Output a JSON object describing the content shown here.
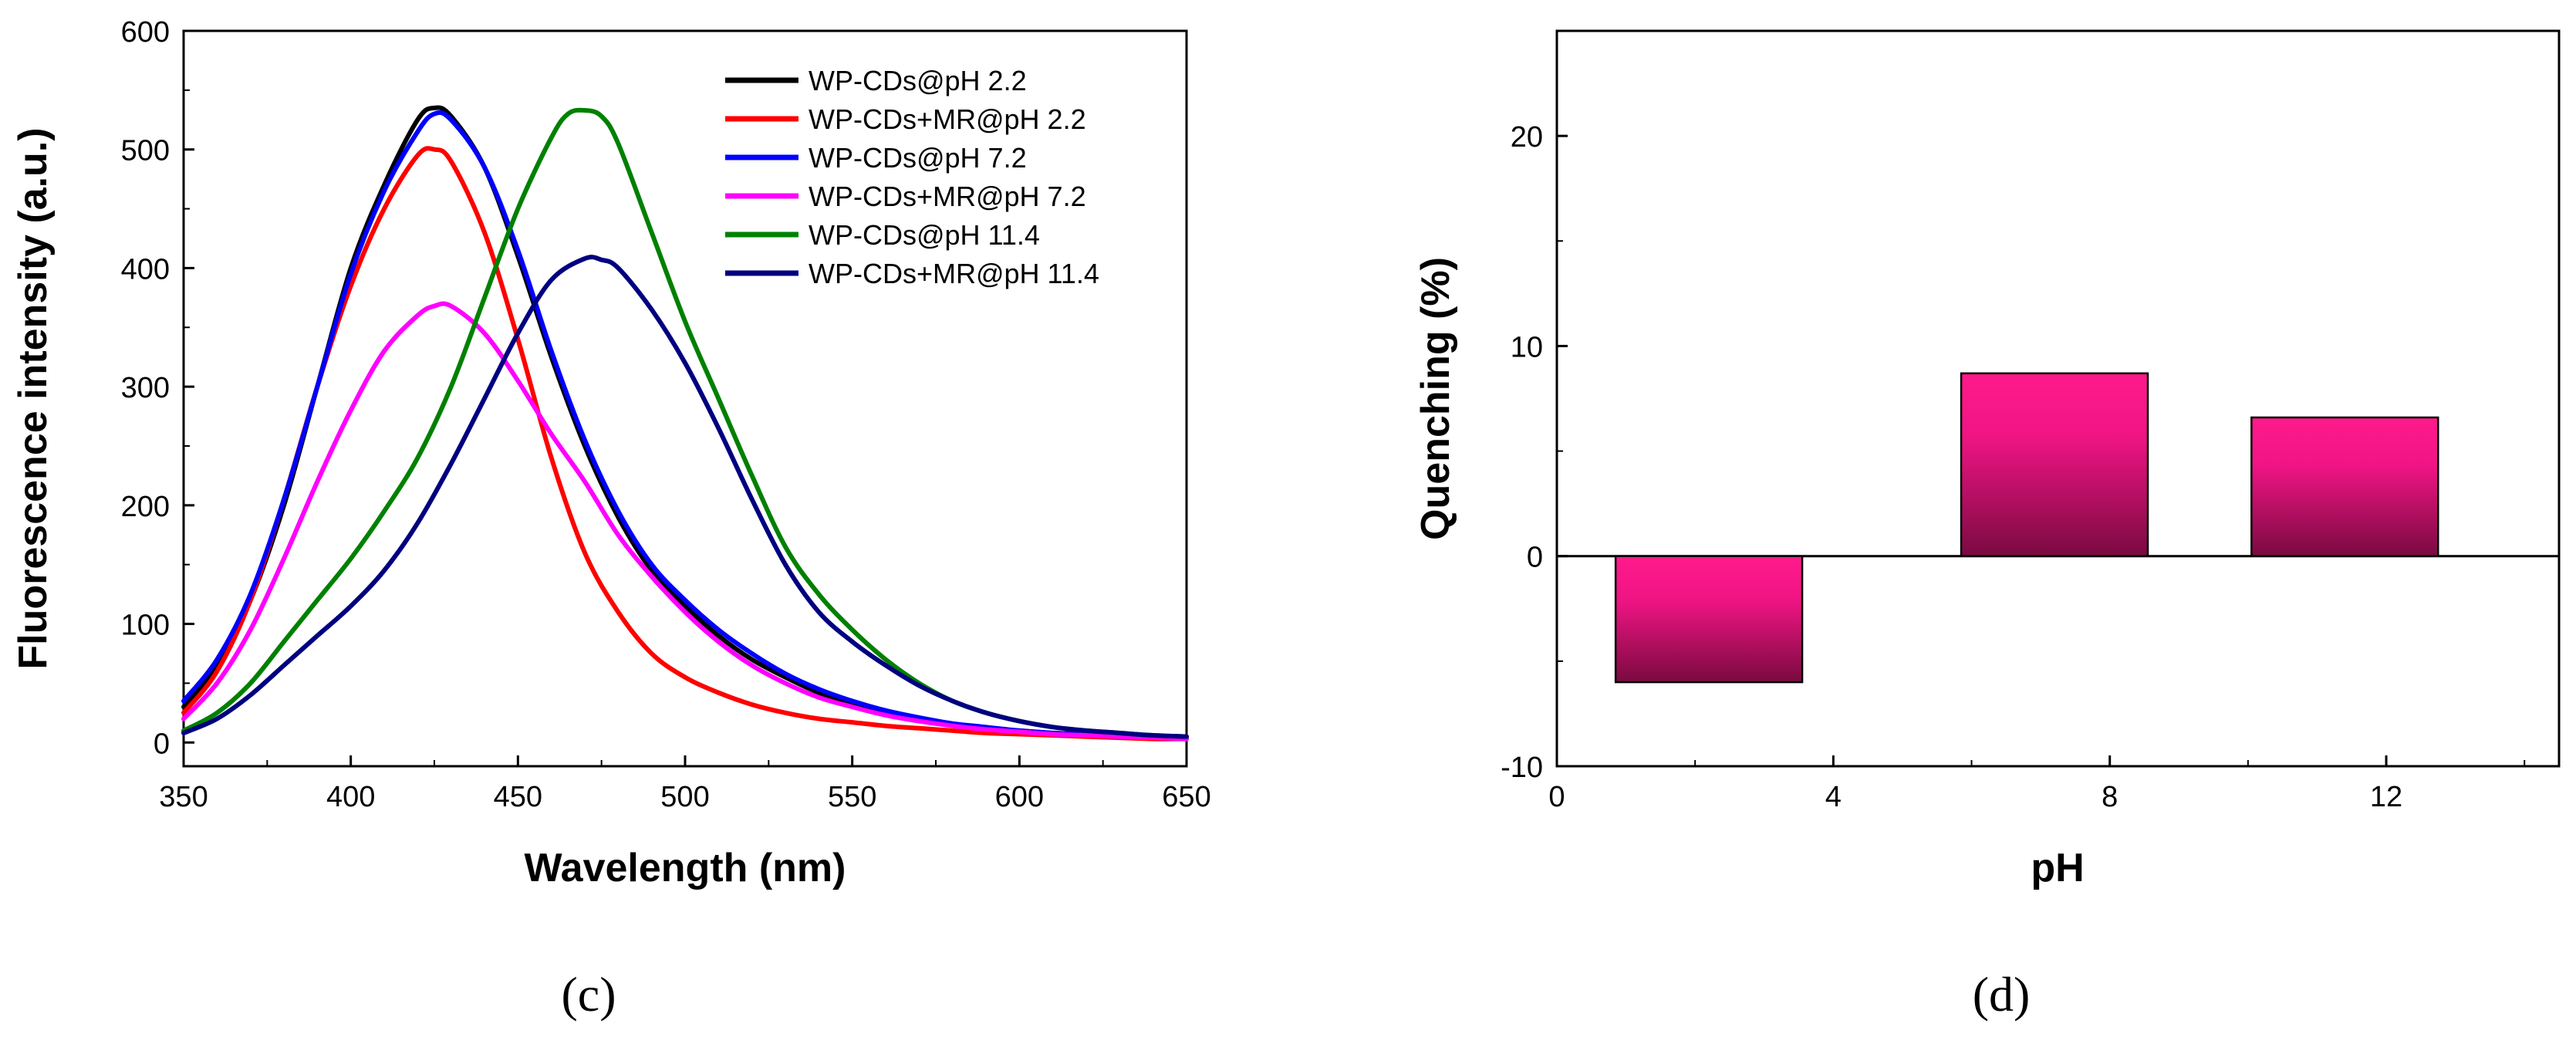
{
  "chart_data": [
    {
      "id": "c",
      "type": "line",
      "panel_label": "(c)",
      "xlabel": "Wavelength (nm)",
      "ylabel": "Fluorescence intensity (a.u.)",
      "xlim": [
        350,
        650
      ],
      "ylim": [
        -20,
        600
      ],
      "xticks": [
        350,
        400,
        450,
        500,
        550,
        600,
        650
      ],
      "yticks": [
        0,
        100,
        200,
        300,
        400,
        500,
        600
      ],
      "legend_position": "top-right",
      "series": [
        {
          "name": "WP-CDs@pH 2.2",
          "color": "#000000",
          "x": [
            350,
            360,
            370,
            380,
            390,
            400,
            410,
            420,
            425,
            430,
            440,
            450,
            460,
            470,
            480,
            490,
            500,
            510,
            520,
            530,
            540,
            550,
            560,
            570,
            580,
            590,
            600,
            610,
            620,
            630,
            640,
            650
          ],
          "y": [
            30,
            65,
            120,
            200,
            300,
            400,
            470,
            525,
            535,
            528,
            485,
            410,
            325,
            250,
            190,
            145,
            115,
            90,
            70,
            55,
            42,
            32,
            25,
            20,
            15,
            12,
            10,
            8,
            7,
            6,
            5,
            4
          ]
        },
        {
          "name": "WP-CDs+MR@pH 2.2",
          "color": "#ff0000",
          "x": [
            350,
            360,
            370,
            380,
            390,
            400,
            410,
            420,
            425,
            430,
            440,
            450,
            460,
            470,
            480,
            490,
            500,
            510,
            520,
            530,
            540,
            550,
            560,
            570,
            580,
            590,
            600,
            610,
            620,
            630,
            640,
            650
          ],
          "y": [
            25,
            60,
            120,
            205,
            300,
            385,
            450,
            495,
            500,
            490,
            430,
            340,
            240,
            160,
            110,
            75,
            55,
            42,
            32,
            25,
            20,
            17,
            14,
            12,
            10,
            8,
            7,
            6,
            5,
            4,
            3,
            3
          ]
        },
        {
          "name": "WP-CDs@pH 7.2",
          "color": "#0000ff",
          "x": [
            350,
            360,
            370,
            380,
            390,
            400,
            410,
            420,
            425,
            430,
            440,
            450,
            460,
            470,
            480,
            490,
            500,
            510,
            520,
            530,
            540,
            550,
            560,
            570,
            580,
            590,
            600,
            610,
            620,
            630,
            640,
            650
          ],
          "y": [
            35,
            70,
            125,
            205,
            300,
            395,
            465,
            515,
            530,
            525,
            485,
            415,
            330,
            255,
            195,
            150,
            120,
            95,
            75,
            58,
            45,
            35,
            27,
            21,
            16,
            13,
            10,
            8,
            7,
            6,
            5,
            4
          ]
        },
        {
          "name": "WP-CDs+MR@pH 7.2",
          "color": "#ff00ff",
          "x": [
            350,
            360,
            370,
            380,
            390,
            400,
            410,
            420,
            425,
            430,
            440,
            450,
            460,
            470,
            480,
            490,
            500,
            510,
            520,
            530,
            540,
            550,
            560,
            570,
            580,
            590,
            600,
            610,
            620,
            630,
            640,
            650
          ],
          "y": [
            20,
            50,
            95,
            155,
            220,
            280,
            330,
            360,
            368,
            368,
            345,
            305,
            260,
            220,
            175,
            140,
            110,
            85,
            65,
            50,
            38,
            30,
            23,
            18,
            14,
            11,
            9,
            7,
            6,
            5,
            4,
            3
          ]
        },
        {
          "name": "WP-CDs@pH 11.4",
          "color": "#008000",
          "x": [
            350,
            360,
            370,
            380,
            390,
            400,
            410,
            420,
            430,
            440,
            450,
            460,
            465,
            470,
            475,
            480,
            490,
            500,
            510,
            520,
            530,
            540,
            550,
            560,
            570,
            580,
            590,
            600,
            610,
            620,
            630,
            640,
            650
          ],
          "y": [
            10,
            25,
            50,
            85,
            120,
            155,
            195,
            240,
            300,
            375,
            450,
            510,
            530,
            533,
            528,
            505,
            430,
            355,
            290,
            225,
            165,
            125,
            95,
            70,
            50,
            35,
            25,
            18,
            13,
            10,
            8,
            6,
            5
          ]
        },
        {
          "name": "WP-CDs+MR@pH 11.4",
          "color": "#000080",
          "x": [
            350,
            360,
            370,
            380,
            390,
            400,
            410,
            420,
            430,
            440,
            450,
            460,
            470,
            475,
            480,
            490,
            500,
            510,
            520,
            530,
            540,
            550,
            560,
            570,
            580,
            590,
            600,
            610,
            620,
            630,
            640,
            650
          ],
          "y": [
            8,
            20,
            40,
            65,
            90,
            115,
            145,
            185,
            235,
            290,
            345,
            390,
            408,
            407,
            400,
            365,
            320,
            265,
            205,
            150,
            110,
            85,
            65,
            48,
            35,
            25,
            18,
            13,
            10,
            8,
            6,
            5
          ]
        }
      ]
    },
    {
      "id": "d",
      "type": "bar",
      "panel_label": "(d)",
      "xlabel": "pH",
      "ylabel": "Quenching (%)",
      "xlim": [
        0,
        14.5
      ],
      "ylim": [
        -10,
        25
      ],
      "xticks": [
        0,
        4,
        8,
        12
      ],
      "yticks": [
        -10,
        0,
        10,
        20
      ],
      "x": [
        2.2,
        7.2,
        11.4
      ],
      "values": [
        -6.0,
        8.7,
        6.6
      ],
      "bar_width": 2.7,
      "color_top": "#ff1a8c",
      "color_bottom": "#7a0a40"
    }
  ]
}
